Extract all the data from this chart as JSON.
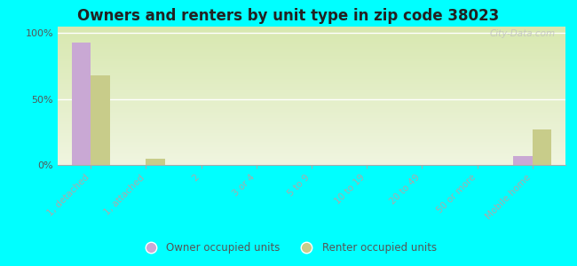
{
  "title": "Owners and renters by unit type in zip code 38023",
  "categories": [
    "1, detached",
    "1, attached",
    "2",
    "3 or 4",
    "5 to 9",
    "10 to 19",
    "20 to 49",
    "50 or more",
    "Mobile home"
  ],
  "owner_values": [
    93,
    0,
    0,
    0,
    0,
    0,
    0,
    0,
    7
  ],
  "renter_values": [
    68,
    5,
    0,
    0,
    0,
    0,
    0,
    0,
    27
  ],
  "owner_color": "#c9a8d4",
  "renter_color": "#c8cc8a",
  "background_color": "#00ffff",
  "plot_bg_top": "#d8e8b0",
  "plot_bg_bottom": "#f0f5e0",
  "ylabel_ticks": [
    "0%",
    "50%",
    "100%"
  ],
  "yticks": [
    0,
    50,
    100
  ],
  "ylim": [
    0,
    105
  ],
  "bar_width": 0.35,
  "legend_owner": "Owner occupied units",
  "legend_renter": "Renter occupied units",
  "watermark": "City-Data.com"
}
